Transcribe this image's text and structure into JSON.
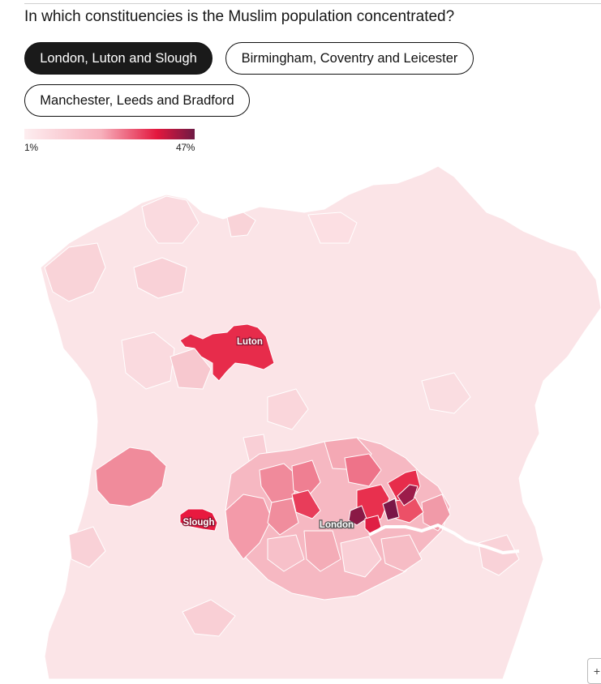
{
  "question": "In which constituencies is the Muslim population concentrated?",
  "toggles": [
    {
      "label": "London, Luton and Slough",
      "active": true
    },
    {
      "label": "Birmingham, Coventry and Leicester",
      "active": false
    },
    {
      "label": "Manchester, Leeds and Bradford",
      "active": false
    }
  ],
  "legend": {
    "min_label": "1%",
    "max_label": "47%",
    "colors": [
      "#fdeef0",
      "#f7b0bc",
      "#e3173e",
      "#6e1a44"
    ]
  },
  "map": {
    "labels": [
      "Luton",
      "Slough",
      "London"
    ],
    "colors": {
      "base": "#fbe4e7",
      "light": "#f9d3d8",
      "mid": "#f08a9b",
      "high": "#e72c4b",
      "max": "#7a1747",
      "river": "#ffffff"
    }
  },
  "corner_button_label": "+"
}
